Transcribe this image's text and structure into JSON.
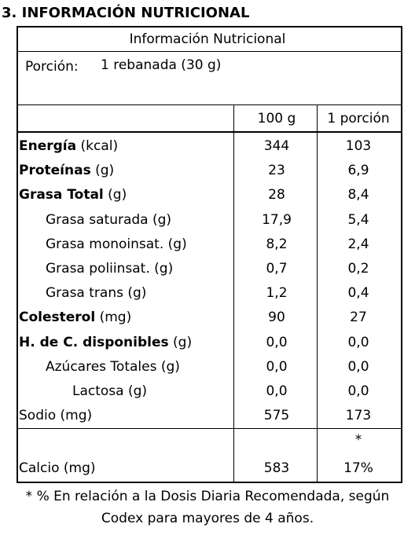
{
  "title": "3. INFORMACIÓN NUTRICIONAL",
  "table": {
    "heading": "Información Nutricional",
    "portion_label": "Porción:",
    "portion_value": "1 rebanada (30 g)",
    "columns": [
      "100 g",
      "1 porción"
    ],
    "rows": [
      [
        "Energía",
        "(kcal)",
        "344",
        "103"
      ],
      [
        "Proteínas",
        "(g)",
        "23",
        "6,9"
      ],
      [
        "Grasa Total",
        "(g)",
        "28",
        "8,4"
      ],
      [
        "Grasa saturada",
        "(g)",
        "17,9",
        "5,4"
      ],
      [
        "Grasa monoinsat.",
        "(g)",
        "8,2",
        "2,4"
      ],
      [
        "Grasa poliinsat.",
        "(g)",
        "0,7",
        "0,2"
      ],
      [
        "Grasa trans",
        "(g)",
        "1,2",
        "0,4"
      ],
      [
        "Colesterol",
        "(mg)",
        "90",
        "27"
      ],
      [
        "H. de C. disponibles",
        "(g)",
        "0,0",
        "0,0"
      ],
      [
        "Azúcares Totales",
        "(g)",
        "0,0",
        "0,0"
      ],
      [
        "Lactosa",
        "(g)",
        "0,0",
        "0,0"
      ],
      [
        "Sodio",
        "(mg)",
        "575",
        "173"
      ]
    ],
    "extra": {
      "marker": "*",
      "row": [
        "Calcio",
        "(mg)",
        "583",
        "17%"
      ]
    }
  },
  "footnote": [
    "* % En relación a la Dosis Diaria Recomendada, según",
    "Codex para mayores de 4 años."
  ]
}
